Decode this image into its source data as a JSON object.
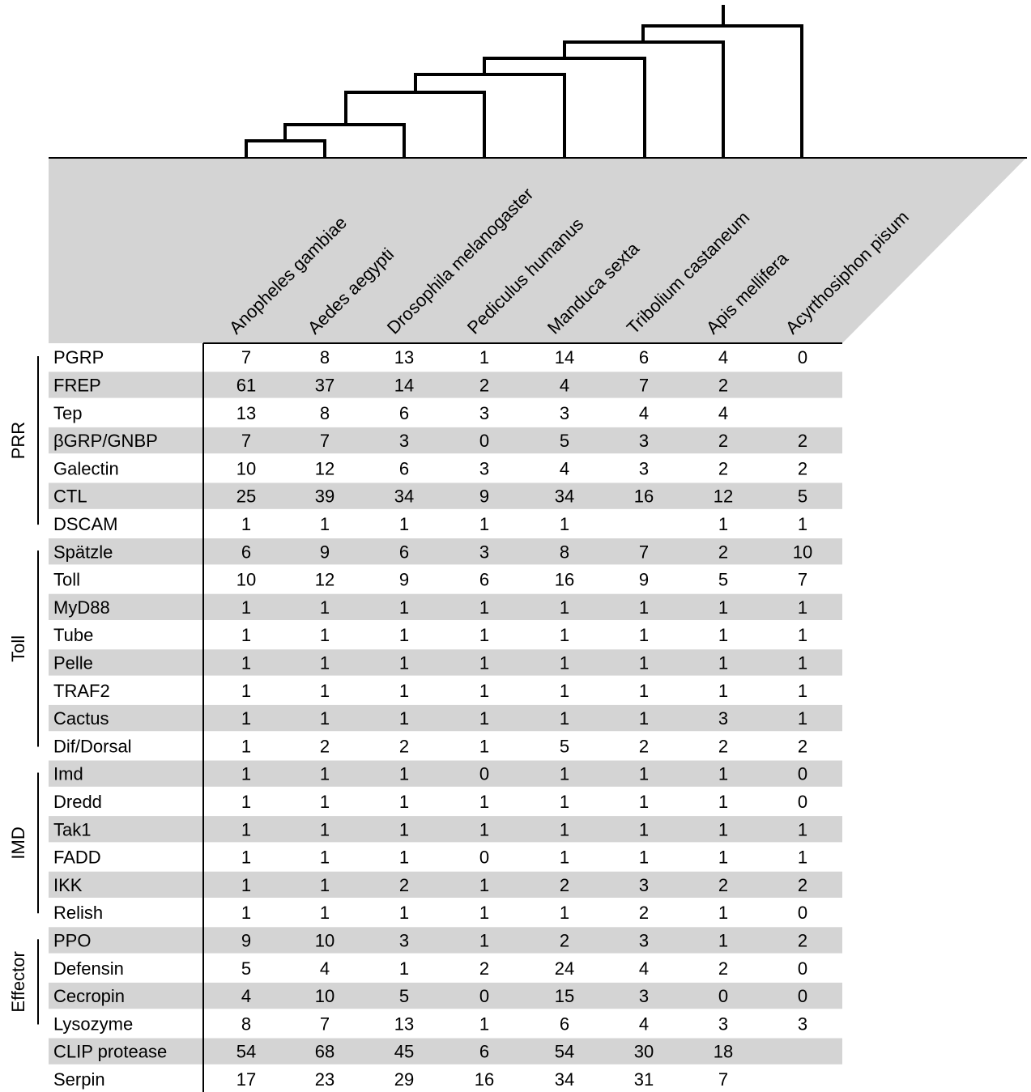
{
  "colors": {
    "stripe": "#d4d4d4",
    "header_band": "#d4d4d4",
    "ink": "#000000"
  },
  "species": [
    "Anopheles gambiae",
    "Aedes aegypti",
    "Drosophila melanogaster",
    "Pediculus humanus",
    "Manduca sexta",
    "Tribolium castaneum",
    "Apis mellifera",
    "Acyrthosiphon pisum"
  ],
  "groups": [
    {
      "label": "PRR",
      "rows": [
        "PGRP",
        "FREP",
        "Tep",
        "βGRP/GNBP",
        "Galectin",
        "CTL",
        "DSCAM"
      ]
    },
    {
      "label": "Toll",
      "rows": [
        "Spätzle",
        "Toll",
        "MyD88",
        "Tube",
        "Pelle",
        "TRAF2",
        "Cactus",
        "Dif/Dorsal"
      ]
    },
    {
      "label": "IMD",
      "rows": [
        "Imd",
        "Dredd",
        "Tak1",
        "FADD",
        "IKK",
        "Relish"
      ]
    },
    {
      "label": "Effector",
      "rows": [
        "PPO",
        "Defensin",
        "Cecropin",
        "Lysozyme"
      ]
    }
  ],
  "rows": [
    {
      "gene": "PGRP",
      "values": [
        "7",
        "8",
        "13",
        "1",
        "14",
        "6",
        "4",
        "0"
      ]
    },
    {
      "gene": "FREP",
      "values": [
        "61",
        "37",
        "14",
        "2",
        "4",
        "7",
        "2",
        ""
      ]
    },
    {
      "gene": "Tep",
      "values": [
        "13",
        "8",
        "6",
        "3",
        "3",
        "4",
        "4",
        ""
      ]
    },
    {
      "gene": "βGRP/GNBP",
      "values": [
        "7",
        "7",
        "3",
        "0",
        "5",
        "3",
        "2",
        "2"
      ]
    },
    {
      "gene": "Galectin",
      "values": [
        "10",
        "12",
        "6",
        "3",
        "4",
        "3",
        "2",
        "2"
      ]
    },
    {
      "gene": "CTL",
      "values": [
        "25",
        "39",
        "34",
        "9",
        "34",
        "16",
        "12",
        "5"
      ]
    },
    {
      "gene": "DSCAM",
      "values": [
        "1",
        "1",
        "1",
        "1",
        "1",
        "",
        "1",
        "1"
      ]
    },
    {
      "gene": "Spätzle",
      "values": [
        "6",
        "9",
        "6",
        "3",
        "8",
        "7",
        "2",
        "10"
      ]
    },
    {
      "gene": "Toll",
      "values": [
        "10",
        "12",
        "9",
        "6",
        "16",
        "9",
        "5",
        "7"
      ]
    },
    {
      "gene": "MyD88",
      "values": [
        "1",
        "1",
        "1",
        "1",
        "1",
        "1",
        "1",
        "1"
      ]
    },
    {
      "gene": "Tube",
      "values": [
        "1",
        "1",
        "1",
        "1",
        "1",
        "1",
        "1",
        "1"
      ]
    },
    {
      "gene": "Pelle",
      "values": [
        "1",
        "1",
        "1",
        "1",
        "1",
        "1",
        "1",
        "1"
      ]
    },
    {
      "gene": "TRAF2",
      "values": [
        "1",
        "1",
        "1",
        "1",
        "1",
        "1",
        "1",
        "1"
      ]
    },
    {
      "gene": "Cactus",
      "values": [
        "1",
        "1",
        "1",
        "1",
        "1",
        "1",
        "3",
        "1"
      ]
    },
    {
      "gene": "Dif/Dorsal",
      "values": [
        "1",
        "2",
        "2",
        "1",
        "5",
        "2",
        "2",
        "2"
      ]
    },
    {
      "gene": "Imd",
      "values": [
        "1",
        "1",
        "1",
        "0",
        "1",
        "1",
        "1",
        "0"
      ]
    },
    {
      "gene": "Dredd",
      "values": [
        "1",
        "1",
        "1",
        "1",
        "1",
        "1",
        "1",
        "0"
      ]
    },
    {
      "gene": "Tak1",
      "values": [
        "1",
        "1",
        "1",
        "1",
        "1",
        "1",
        "1",
        "1"
      ]
    },
    {
      "gene": "FADD",
      "values": [
        "1",
        "1",
        "1",
        "0",
        "1",
        "1",
        "1",
        "1"
      ]
    },
    {
      "gene": "IKK",
      "values": [
        "1",
        "1",
        "2",
        "1",
        "2",
        "3",
        "2",
        "2"
      ]
    },
    {
      "gene": "Relish",
      "values": [
        "1",
        "1",
        "1",
        "1",
        "1",
        "2",
        "1",
        "0"
      ]
    },
    {
      "gene": "PPO",
      "values": [
        "9",
        "10",
        "3",
        "1",
        "2",
        "3",
        "1",
        "2"
      ]
    },
    {
      "gene": "Defensin",
      "values": [
        "5",
        "4",
        "1",
        "2",
        "24",
        "4",
        "2",
        "0"
      ]
    },
    {
      "gene": "Cecropin",
      "values": [
        "4",
        "10",
        "5",
        "0",
        "15",
        "3",
        "0",
        "0"
      ]
    },
    {
      "gene": "Lysozyme",
      "values": [
        "8",
        "7",
        "13",
        "1",
        "6",
        "4",
        "3",
        "3"
      ]
    },
    {
      "gene": "CLIP protease",
      "values": [
        "54",
        "68",
        "45",
        "6",
        "54",
        "30",
        "18",
        ""
      ]
    },
    {
      "gene": "Serpin",
      "values": [
        "17",
        "23",
        "29",
        "16",
        "34",
        "31",
        "7",
        ""
      ]
    }
  ]
}
